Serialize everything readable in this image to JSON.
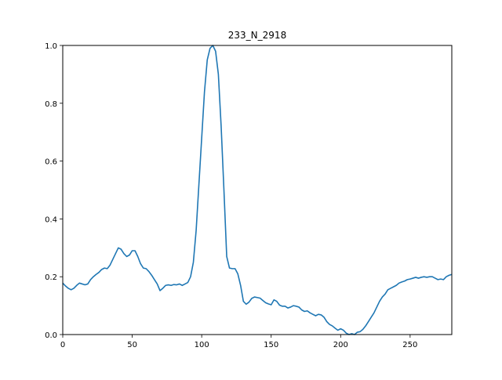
{
  "chart_data": {
    "type": "line",
    "title": "233_N_2918",
    "xlabel": "",
    "ylabel": "",
    "xlim": [
      0,
      280
    ],
    "ylim": [
      0,
      1.0
    ],
    "xticks": [
      0,
      50,
      100,
      150,
      200,
      250
    ],
    "yticks": [
      0.0,
      0.2,
      0.4,
      0.6,
      0.8,
      1.0
    ],
    "xtick_labels": [
      "0",
      "50",
      "100",
      "150",
      "200",
      "250"
    ],
    "ytick_labels": [
      "0.0",
      "0.2",
      "0.4",
      "0.6",
      "0.8",
      "1.0"
    ],
    "grid": false,
    "legend": "none",
    "series": [
      {
        "color": "#1f77b4",
        "x": [
          0,
          2,
          4,
          6,
          8,
          10,
          12,
          14,
          16,
          18,
          20,
          22,
          24,
          26,
          28,
          30,
          32,
          34,
          36,
          38,
          40,
          42,
          44,
          46,
          48,
          50,
          52,
          54,
          56,
          58,
          60,
          62,
          64,
          66,
          68,
          70,
          72,
          74,
          76,
          78,
          80,
          82,
          84,
          86,
          88,
          90,
          92,
          94,
          96,
          98,
          100,
          102,
          104,
          106,
          108,
          110,
          112,
          114,
          116,
          118,
          120,
          122,
          124,
          126,
          128,
          130,
          132,
          134,
          136,
          138,
          140,
          142,
          144,
          146,
          148,
          150,
          152,
          154,
          156,
          158,
          160,
          162,
          164,
          166,
          168,
          170,
          172,
          174,
          176,
          178,
          180,
          182,
          184,
          186,
          188,
          190,
          192,
          194,
          196,
          198,
          200,
          202,
          204,
          206,
          208,
          210,
          212,
          214,
          216,
          218,
          220,
          222,
          224,
          226,
          228,
          230,
          232,
          234,
          236,
          238,
          240,
          242,
          244,
          246,
          248,
          250,
          252,
          254,
          256,
          258,
          260,
          262,
          264,
          266,
          268,
          270,
          272,
          274,
          276,
          278,
          280
        ],
        "y": [
          0.178,
          0.168,
          0.16,
          0.155,
          0.16,
          0.17,
          0.178,
          0.175,
          0.172,
          0.175,
          0.19,
          0.2,
          0.208,
          0.215,
          0.225,
          0.23,
          0.228,
          0.24,
          0.26,
          0.28,
          0.3,
          0.295,
          0.28,
          0.27,
          0.275,
          0.29,
          0.29,
          0.27,
          0.245,
          0.23,
          0.228,
          0.218,
          0.205,
          0.19,
          0.175,
          0.152,
          0.16,
          0.17,
          0.172,
          0.17,
          0.173,
          0.172,
          0.175,
          0.17,
          0.175,
          0.18,
          0.2,
          0.25,
          0.36,
          0.52,
          0.68,
          0.84,
          0.95,
          0.99,
          1.0,
          0.98,
          0.9,
          0.72,
          0.5,
          0.27,
          0.23,
          0.228,
          0.228,
          0.21,
          0.17,
          0.115,
          0.105,
          0.112,
          0.125,
          0.13,
          0.128,
          0.126,
          0.118,
          0.11,
          0.106,
          0.103,
          0.12,
          0.115,
          0.102,
          0.098,
          0.098,
          0.092,
          0.095,
          0.1,
          0.098,
          0.095,
          0.085,
          0.08,
          0.082,
          0.075,
          0.07,
          0.065,
          0.07,
          0.068,
          0.06,
          0.045,
          0.035,
          0.03,
          0.022,
          0.015,
          0.02,
          0.015,
          0.005,
          0.0,
          0.003,
          0.0,
          0.008,
          0.01,
          0.018,
          0.03,
          0.045,
          0.06,
          0.075,
          0.095,
          0.115,
          0.13,
          0.14,
          0.155,
          0.16,
          0.165,
          0.17,
          0.178,
          0.182,
          0.185,
          0.19,
          0.192,
          0.195,
          0.198,
          0.195,
          0.198,
          0.2,
          0.198,
          0.2,
          0.2,
          0.195,
          0.19,
          0.192,
          0.19,
          0.2,
          0.205,
          0.208
        ]
      }
    ]
  }
}
